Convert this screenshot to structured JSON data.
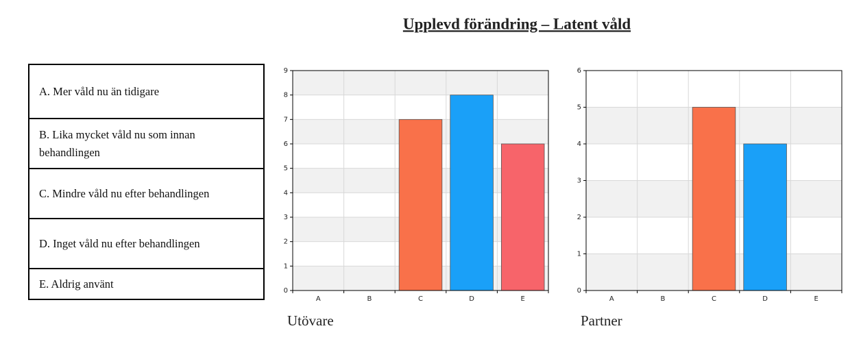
{
  "title": "Upplevd förändring – Latent våld",
  "legend_table": {
    "rows": [
      "A. Mer våld nu än tidigare",
      "B. Lika mycket våld nu som innan behandlingen",
      "C. Mindre våld nu efter behandlingen",
      "D. Inget våld nu efter behandlingen",
      "E. Aldrig använt"
    ]
  },
  "chart_data": [
    {
      "type": "bar",
      "caption": "Utövare",
      "categories": [
        "A",
        "B",
        "C",
        "D",
        "E"
      ],
      "values": [
        0,
        0,
        7,
        8,
        6
      ],
      "colors": [
        "#f9714a",
        "#f9714a",
        "#f9714a",
        "#1aa0f8",
        "#f7646a"
      ],
      "ylim": [
        0,
        9
      ],
      "yticks": [
        0,
        1,
        2,
        3,
        4,
        5,
        6,
        7,
        8,
        9
      ],
      "grid": true
    },
    {
      "type": "bar",
      "caption": "Partner",
      "categories": [
        "A",
        "B",
        "C",
        "D",
        "E"
      ],
      "values": [
        0,
        0,
        5,
        4,
        0
      ],
      "colors": [
        "#f9714a",
        "#f9714a",
        "#f9714a",
        "#1aa0f8",
        "#f7646a"
      ],
      "ylim": [
        0,
        6
      ],
      "yticks": [
        0,
        1,
        2,
        3,
        4,
        5,
        6
      ],
      "grid": true
    }
  ]
}
